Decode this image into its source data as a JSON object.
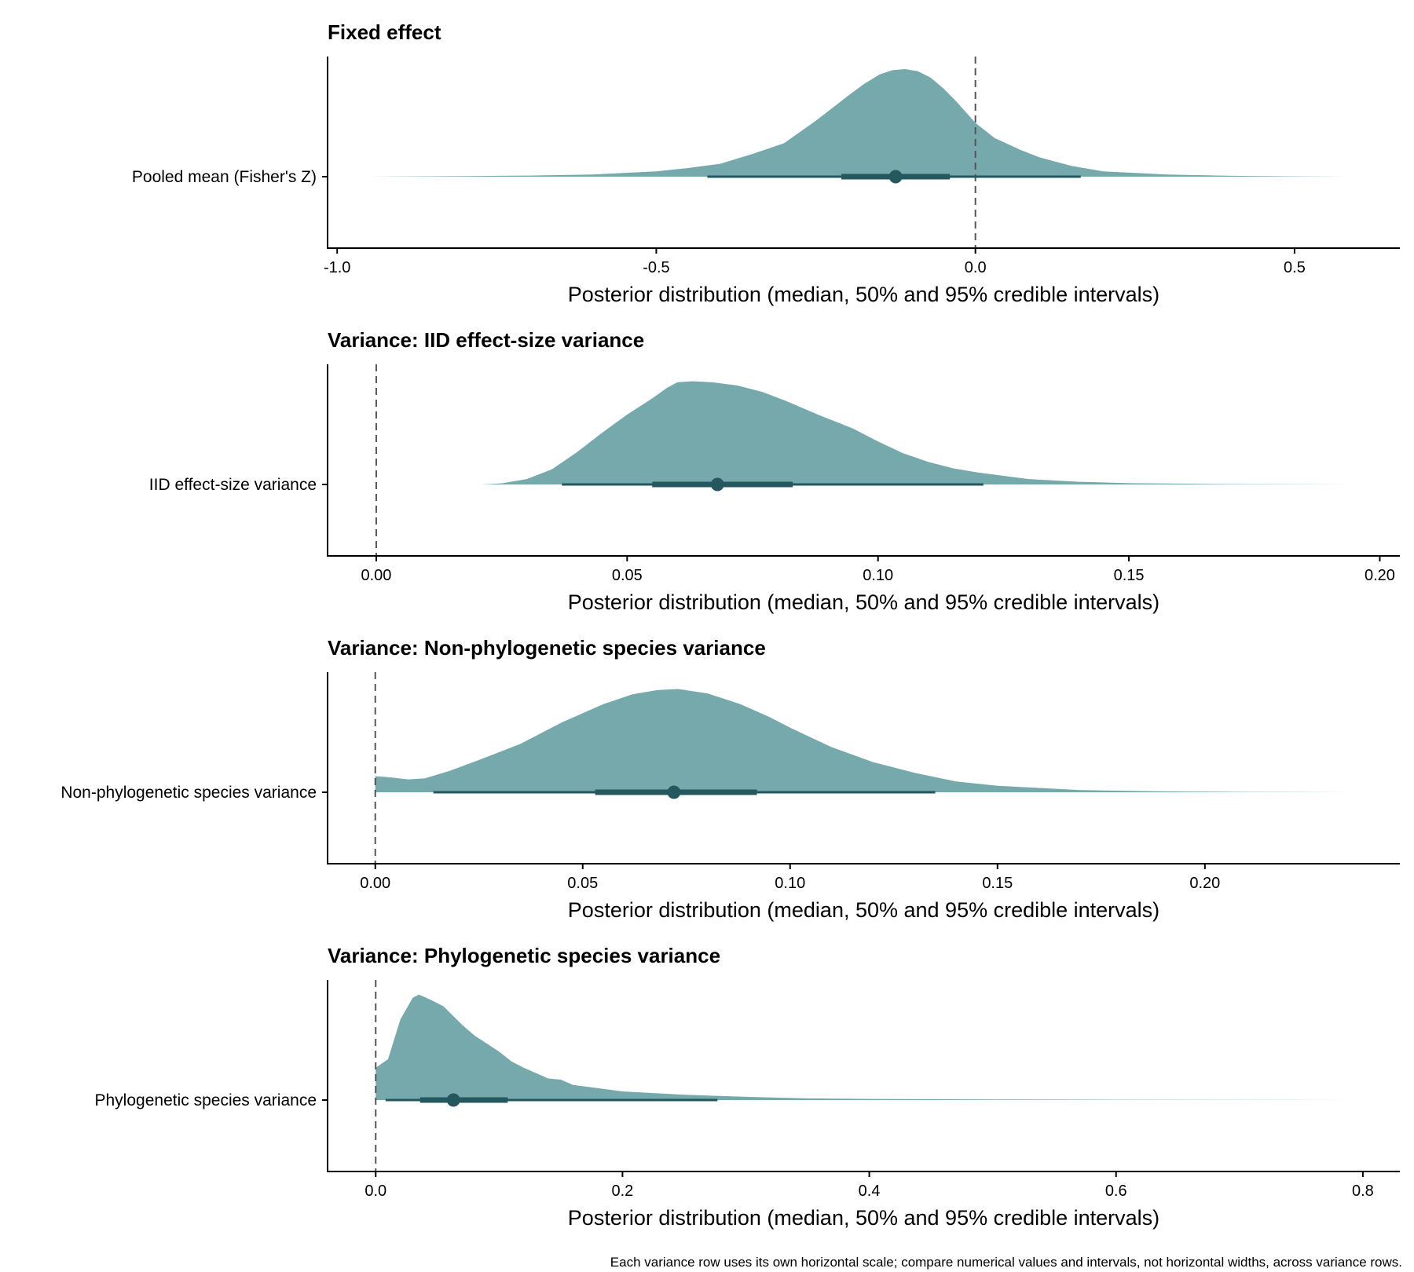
{
  "colors": {
    "density": "#76a9ac",
    "interval": "#24585e",
    "axis": "#000000",
    "ref_line": "#555555"
  },
  "footnote": "Each variance row uses its own horizontal scale; compare numerical values and intervals, not horizontal widths, across variance rows.",
  "chart_data": [
    {
      "type": "halfeye",
      "title": "Fixed effect",
      "row_label": "Pooled mean (Fisher's Z)",
      "xlabel": "Posterior distribution (median, 50% and 95% credible intervals)",
      "xlim": [
        -1.015,
        0.665
      ],
      "ticks": [
        -1.0,
        -0.5,
        0.0,
        0.5
      ],
      "tick_labels": [
        "-1.0",
        "-0.5",
        "0.0",
        "0.5"
      ],
      "ref_line": 0,
      "median": -0.125,
      "ci50": [
        -0.21,
        -0.04
      ],
      "ci95": [
        -0.42,
        0.165
      ],
      "density": [
        [
          -0.95,
          0.0
        ],
        [
          -0.8,
          0.005
        ],
        [
          -0.7,
          0.01
        ],
        [
          -0.6,
          0.02
        ],
        [
          -0.5,
          0.05
        ],
        [
          -0.45,
          0.08
        ],
        [
          -0.4,
          0.12
        ],
        [
          -0.35,
          0.21
        ],
        [
          -0.3,
          0.31
        ],
        [
          -0.25,
          0.52
        ],
        [
          -0.2,
          0.75
        ],
        [
          -0.175,
          0.86
        ],
        [
          -0.15,
          0.95
        ],
        [
          -0.13,
          0.99
        ],
        [
          -0.11,
          1.0
        ],
        [
          -0.09,
          0.98
        ],
        [
          -0.07,
          0.92
        ],
        [
          -0.05,
          0.82
        ],
        [
          -0.03,
          0.7
        ],
        [
          0.0,
          0.5
        ],
        [
          0.03,
          0.36
        ],
        [
          0.07,
          0.25
        ],
        [
          0.1,
          0.18
        ],
        [
          0.15,
          0.1
        ],
        [
          0.2,
          0.05
        ],
        [
          0.3,
          0.02
        ],
        [
          0.4,
          0.008
        ],
        [
          0.5,
          0.003
        ],
        [
          0.58,
          0.0
        ]
      ]
    },
    {
      "type": "halfeye",
      "title": "Variance: IID effect-size variance",
      "row_label": "IID effect-size variance",
      "xlabel": "Posterior distribution (median, 50% and 95% credible intervals)",
      "xlim": [
        -0.0097,
        0.204
      ],
      "ticks": [
        0.0,
        0.05,
        0.1,
        0.15,
        0.2
      ],
      "tick_labels": [
        "0.00",
        "0.05",
        "0.10",
        "0.15",
        "0.20"
      ],
      "ref_line": 0,
      "median": 0.068,
      "ci50": [
        0.055,
        0.083
      ],
      "ci95": [
        0.037,
        0.121
      ],
      "density": [
        [
          0.021,
          0.0
        ],
        [
          0.025,
          0.01
        ],
        [
          0.03,
          0.05
        ],
        [
          0.035,
          0.14
        ],
        [
          0.04,
          0.3
        ],
        [
          0.045,
          0.48
        ],
        [
          0.05,
          0.65
        ],
        [
          0.055,
          0.8
        ],
        [
          0.058,
          0.9
        ],
        [
          0.06,
          0.95
        ],
        [
          0.063,
          0.96
        ],
        [
          0.067,
          0.95
        ],
        [
          0.072,
          0.92
        ],
        [
          0.077,
          0.86
        ],
        [
          0.082,
          0.77
        ],
        [
          0.088,
          0.65
        ],
        [
          0.095,
          0.52
        ],
        [
          0.1,
          0.4
        ],
        [
          0.105,
          0.29
        ],
        [
          0.11,
          0.21
        ],
        [
          0.115,
          0.15
        ],
        [
          0.12,
          0.11
        ],
        [
          0.125,
          0.08
        ],
        [
          0.13,
          0.05
        ],
        [
          0.14,
          0.025
        ],
        [
          0.15,
          0.012
        ],
        [
          0.17,
          0.004
        ],
        [
          0.194,
          0.0
        ]
      ]
    },
    {
      "type": "halfeye",
      "title": "Variance: Non-phylogenetic species variance",
      "row_label": "Non-phylogenetic species variance",
      "xlabel": "Posterior distribution (median, 50% and 95% credible intervals)",
      "xlim": [
        -0.0115,
        0.247
      ],
      "ticks": [
        0.0,
        0.05,
        0.1,
        0.15,
        0.2
      ],
      "tick_labels": [
        "0.00",
        "0.05",
        "0.10",
        "0.15",
        "0.20"
      ],
      "ref_line": 0,
      "median": 0.072,
      "ci50": [
        0.053,
        0.092
      ],
      "ci95": [
        0.014,
        0.135
      ],
      "density": [
        [
          0.0,
          0.0
        ],
        [
          0.0,
          0.15
        ],
        [
          0.003,
          0.14
        ],
        [
          0.008,
          0.12
        ],
        [
          0.012,
          0.13
        ],
        [
          0.018,
          0.2
        ],
        [
          0.025,
          0.3
        ],
        [
          0.035,
          0.45
        ],
        [
          0.045,
          0.65
        ],
        [
          0.055,
          0.82
        ],
        [
          0.062,
          0.91
        ],
        [
          0.068,
          0.95
        ],
        [
          0.073,
          0.96
        ],
        [
          0.08,
          0.92
        ],
        [
          0.088,
          0.82
        ],
        [
          0.095,
          0.7
        ],
        [
          0.1,
          0.6
        ],
        [
          0.11,
          0.42
        ],
        [
          0.12,
          0.28
        ],
        [
          0.13,
          0.18
        ],
        [
          0.14,
          0.1
        ],
        [
          0.15,
          0.06
        ],
        [
          0.16,
          0.04
        ],
        [
          0.17,
          0.02
        ],
        [
          0.19,
          0.008
        ],
        [
          0.21,
          0.003
        ],
        [
          0.235,
          0.0
        ]
      ]
    },
    {
      "type": "halfeye",
      "title": "Variance: Phylogenetic species variance",
      "row_label": "Phylogenetic species variance",
      "xlabel": "Posterior distribution (median, 50% and 95% credible intervals)",
      "xlim": [
        -0.039,
        0.83
      ],
      "ticks": [
        0.0,
        0.2,
        0.4,
        0.6,
        0.8
      ],
      "tick_labels": [
        "0.0",
        "0.2",
        "0.4",
        "0.6",
        "0.8"
      ],
      "ref_line": 0,
      "median": 0.063,
      "ci50": [
        0.036,
        0.107
      ],
      "ci95": [
        0.008,
        0.277
      ],
      "density": [
        [
          0.0,
          0.0
        ],
        [
          0.0,
          0.3
        ],
        [
          0.01,
          0.38
        ],
        [
          0.02,
          0.75
        ],
        [
          0.03,
          0.95
        ],
        [
          0.035,
          0.98
        ],
        [
          0.045,
          0.93
        ],
        [
          0.055,
          0.87
        ],
        [
          0.07,
          0.7
        ],
        [
          0.08,
          0.6
        ],
        [
          0.1,
          0.45
        ],
        [
          0.11,
          0.36
        ],
        [
          0.12,
          0.3
        ],
        [
          0.14,
          0.2
        ],
        [
          0.15,
          0.19
        ],
        [
          0.16,
          0.14
        ],
        [
          0.18,
          0.11
        ],
        [
          0.2,
          0.08
        ],
        [
          0.25,
          0.05
        ],
        [
          0.3,
          0.03
        ],
        [
          0.35,
          0.015
        ],
        [
          0.4,
          0.01
        ],
        [
          0.5,
          0.005
        ],
        [
          0.6,
          0.003
        ],
        [
          0.79,
          0.0
        ]
      ]
    }
  ]
}
